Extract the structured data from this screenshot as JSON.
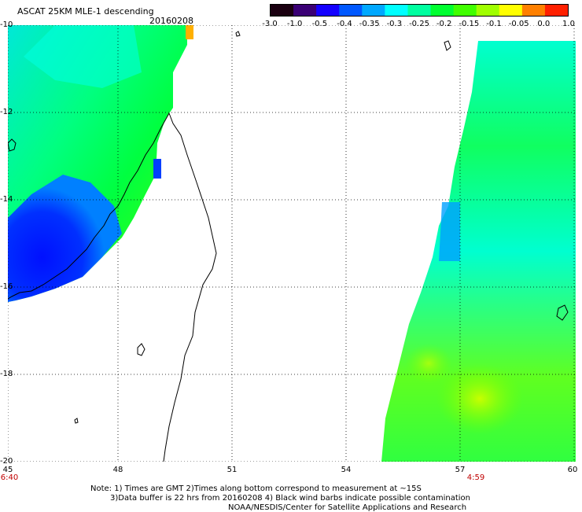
{
  "header": {
    "title": "ASCAT 25KM MLE-1 descending",
    "date": "20160208"
  },
  "colorbar": {
    "labels": [
      "-3.0",
      "-1.0",
      "-0.5",
      "-0.4",
      "-0.35",
      "-0.3",
      "-0.25",
      "-0.2",
      "-0.15",
      "-0.1",
      "-0.05",
      "0.0",
      "1.0"
    ],
    "colors": [
      "#1a0010",
      "#3a0075",
      "#1400ff",
      "#0058ff",
      "#00a8ff",
      "#00ffff",
      "#00ffa0",
      "#00ff30",
      "#40ff00",
      "#a0ff00",
      "#ffff00",
      "#ff8000",
      "#ff2000"
    ]
  },
  "axes": {
    "lat_labels": [
      "-10",
      "-12",
      "-14",
      "-16",
      "-18",
      "-20"
    ],
    "lon_labels": [
      "45",
      "48",
      "51",
      "54",
      "57",
      "60"
    ]
  },
  "times": {
    "left": "6:40",
    "right": "4:59"
  },
  "notes": {
    "line1": "Note: 1) Times are GMT 2)Times along bottom correspond to measurement at ~15S",
    "line2": "3)Data buffer is 22 hrs from 20160208 4) Black wind barbs indicate possible contamination",
    "line3": "NOAA/NESDIS/Center for Satellite Applications and Research"
  }
}
